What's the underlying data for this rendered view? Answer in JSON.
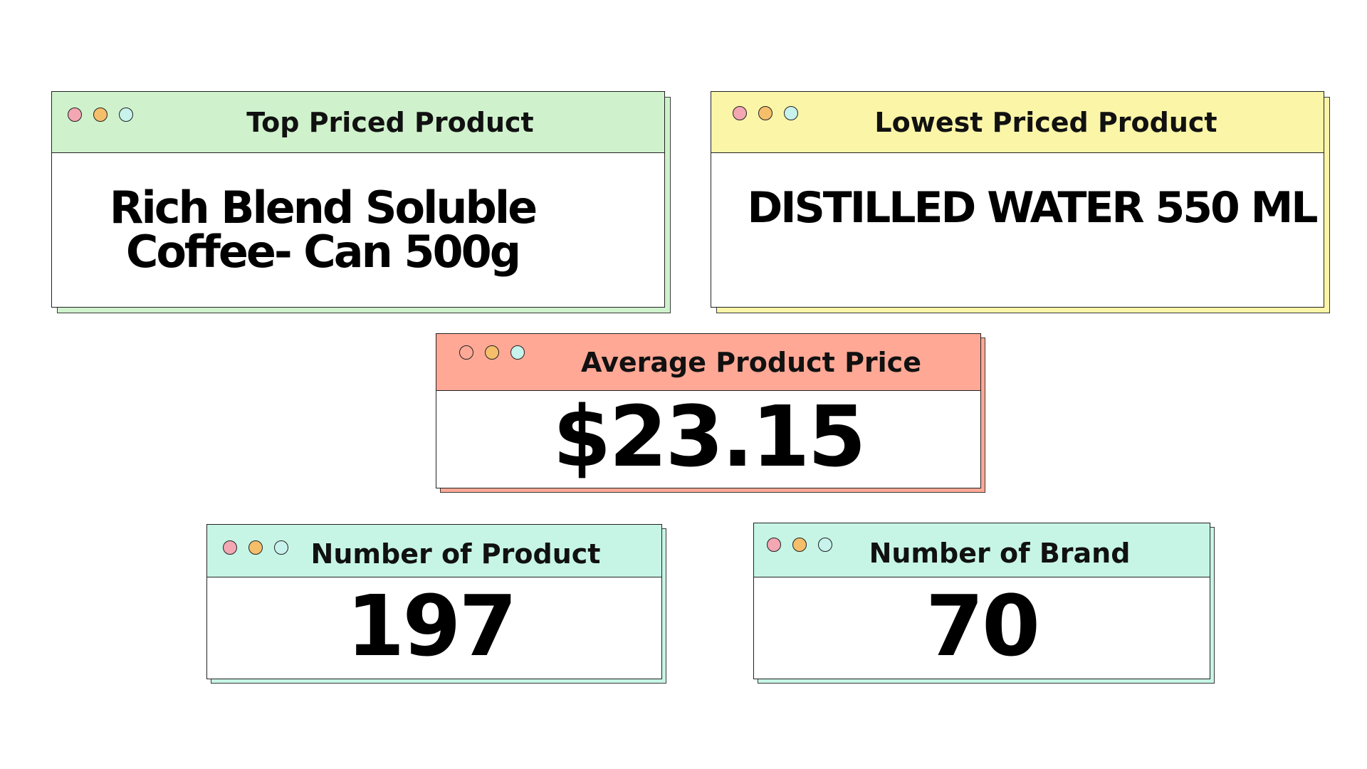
{
  "colors": {
    "green": "#cff2cc",
    "yellow": "#fbf5a8",
    "salmon": "#ffa896",
    "mint": "#c6f5e6",
    "dot_pink": "#f2a7b3",
    "dot_orange": "#f4be6b",
    "dot_cyan": "#c8f2ec"
  },
  "cards": {
    "top_priced": {
      "title": "Top Priced Product",
      "value_line1": "Rich Blend Soluble",
      "value_line2": "Coffee- Can 500g"
    },
    "lowest_priced": {
      "title": "Lowest Priced Product",
      "value": "DISTILLED WATER 550 ML"
    },
    "average_price": {
      "title": "Average Product Price",
      "value": "$23.15"
    },
    "number_of_product": {
      "title": "Number of Product",
      "value": "197"
    },
    "number_of_brand": {
      "title": "Number of Brand",
      "value": "70"
    }
  }
}
